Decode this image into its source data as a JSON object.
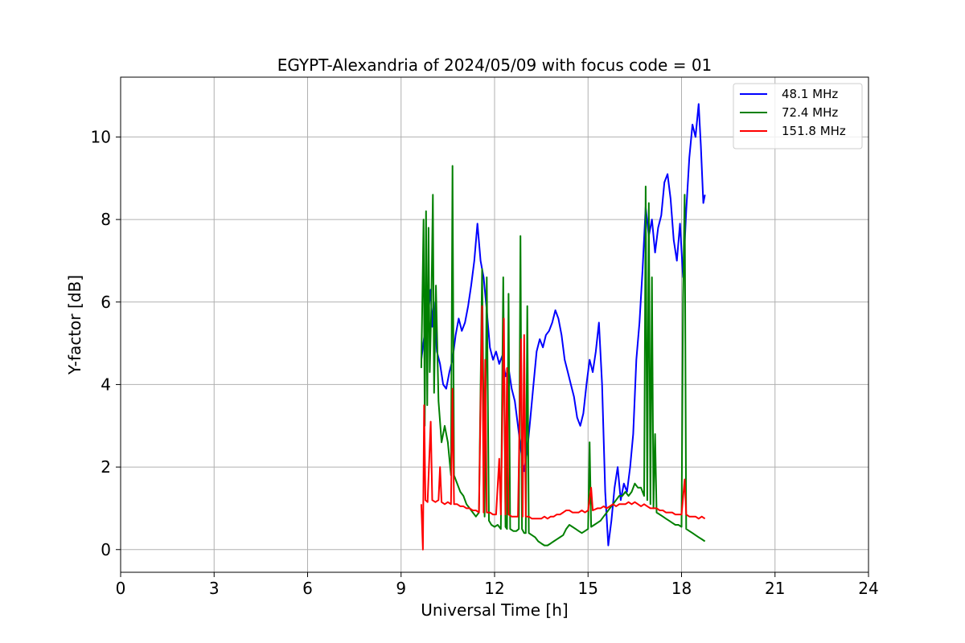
{
  "chart_data": {
    "type": "line",
    "title": "EGYPT-Alexandria of 2024/05/09 with focus code = 01",
    "xlabel": "Universal Time [h]",
    "ylabel": "Y-factor [dB]",
    "xlim": [
      0,
      24
    ],
    "ylim": [
      -0.55,
      11.45
    ],
    "xticks": [
      0,
      3,
      6,
      9,
      12,
      15,
      18,
      21,
      24
    ],
    "yticks": [
      0,
      2,
      4,
      6,
      8,
      10
    ],
    "grid": true,
    "legend_position": "top-right",
    "series": [
      {
        "name": "48.1 MHz",
        "color": "#0000ff",
        "points": [
          [
            9.65,
            4.6
          ],
          [
            9.75,
            5.2
          ],
          [
            9.85,
            5.6
          ],
          [
            9.95,
            6.3
          ],
          [
            10.0,
            5.4
          ],
          [
            10.05,
            6.0
          ],
          [
            10.15,
            4.8
          ],
          [
            10.25,
            4.5
          ],
          [
            10.35,
            4.0
          ],
          [
            10.45,
            3.9
          ],
          [
            10.55,
            4.3
          ],
          [
            10.65,
            4.6
          ],
          [
            10.75,
            5.2
          ],
          [
            10.85,
            5.6
          ],
          [
            10.95,
            5.3
          ],
          [
            11.05,
            5.5
          ],
          [
            11.15,
            5.9
          ],
          [
            11.25,
            6.4
          ],
          [
            11.35,
            7.0
          ],
          [
            11.45,
            7.9
          ],
          [
            11.55,
            7.0
          ],
          [
            11.65,
            6.6
          ],
          [
            11.75,
            5.8
          ],
          [
            11.85,
            4.9
          ],
          [
            11.95,
            4.6
          ],
          [
            12.05,
            4.8
          ],
          [
            12.15,
            4.5
          ],
          [
            12.25,
            4.7
          ],
          [
            12.35,
            4.2
          ],
          [
            12.45,
            4.4
          ],
          [
            12.55,
            3.9
          ],
          [
            12.65,
            3.6
          ],
          [
            12.75,
            3.0
          ],
          [
            12.85,
            2.4
          ],
          [
            12.95,
            1.9
          ],
          [
            13.05,
            2.4
          ],
          [
            13.15,
            3.2
          ],
          [
            13.25,
            4.0
          ],
          [
            13.35,
            4.8
          ],
          [
            13.45,
            5.1
          ],
          [
            13.55,
            4.9
          ],
          [
            13.65,
            5.2
          ],
          [
            13.75,
            5.3
          ],
          [
            13.85,
            5.5
          ],
          [
            13.95,
            5.8
          ],
          [
            14.05,
            5.6
          ],
          [
            14.15,
            5.2
          ],
          [
            14.25,
            4.6
          ],
          [
            14.35,
            4.3
          ],
          [
            14.45,
            4.0
          ],
          [
            14.55,
            3.7
          ],
          [
            14.65,
            3.2
          ],
          [
            14.75,
            3.0
          ],
          [
            14.85,
            3.3
          ],
          [
            14.95,
            4.0
          ],
          [
            15.05,
            4.6
          ],
          [
            15.15,
            4.3
          ],
          [
            15.25,
            4.8
          ],
          [
            15.35,
            5.5
          ],
          [
            15.45,
            4.0
          ],
          [
            15.55,
            1.4
          ],
          [
            15.65,
            0.1
          ],
          [
            15.75,
            0.7
          ],
          [
            15.85,
            1.5
          ],
          [
            15.95,
            2.0
          ],
          [
            16.05,
            1.2
          ],
          [
            16.15,
            1.6
          ],
          [
            16.25,
            1.4
          ],
          [
            16.35,
            2.0
          ],
          [
            16.45,
            2.8
          ],
          [
            16.55,
            4.6
          ],
          [
            16.65,
            5.5
          ],
          [
            16.75,
            6.8
          ],
          [
            16.85,
            8.3
          ],
          [
            16.95,
            7.6
          ],
          [
            17.05,
            8.0
          ],
          [
            17.15,
            7.2
          ],
          [
            17.25,
            7.8
          ],
          [
            17.35,
            8.1
          ],
          [
            17.45,
            8.9
          ],
          [
            17.55,
            9.1
          ],
          [
            17.65,
            8.5
          ],
          [
            17.75,
            7.5
          ],
          [
            17.85,
            7.0
          ],
          [
            17.95,
            7.9
          ],
          [
            18.05,
            6.6
          ],
          [
            18.15,
            8.2
          ],
          [
            18.25,
            9.5
          ],
          [
            18.35,
            10.3
          ],
          [
            18.45,
            10.0
          ],
          [
            18.55,
            10.8
          ],
          [
            18.62,
            9.8
          ],
          [
            18.7,
            8.4
          ],
          [
            18.75,
            8.6
          ]
        ]
      },
      {
        "name": "72.4 MHz",
        "color": "#008000",
        "points": [
          [
            9.65,
            4.4
          ],
          [
            9.72,
            8.0
          ],
          [
            9.76,
            3.0
          ],
          [
            9.8,
            8.2
          ],
          [
            9.84,
            3.5
          ],
          [
            9.88,
            7.8
          ],
          [
            9.92,
            4.3
          ],
          [
            9.97,
            5.8
          ],
          [
            10.02,
            8.6
          ],
          [
            10.06,
            3.8
          ],
          [
            10.12,
            6.4
          ],
          [
            10.2,
            3.6
          ],
          [
            10.3,
            2.6
          ],
          [
            10.4,
            3.0
          ],
          [
            10.5,
            2.6
          ],
          [
            10.6,
            1.8
          ],
          [
            10.65,
            9.3
          ],
          [
            10.7,
            1.8
          ],
          [
            10.8,
            1.6
          ],
          [
            10.9,
            1.4
          ],
          [
            11.0,
            1.3
          ],
          [
            11.1,
            1.1
          ],
          [
            11.2,
            1.0
          ],
          [
            11.3,
            0.9
          ],
          [
            11.4,
            0.8
          ],
          [
            11.5,
            0.9
          ],
          [
            11.6,
            6.8
          ],
          [
            11.68,
            0.8
          ],
          [
            11.75,
            6.6
          ],
          [
            11.82,
            0.7
          ],
          [
            11.9,
            0.6
          ],
          [
            12.0,
            0.55
          ],
          [
            12.1,
            0.6
          ],
          [
            12.2,
            0.5
          ],
          [
            12.28,
            6.6
          ],
          [
            12.35,
            0.55
          ],
          [
            12.4,
            0.5
          ],
          [
            12.45,
            6.2
          ],
          [
            12.5,
            0.5
          ],
          [
            12.6,
            0.45
          ],
          [
            12.7,
            0.45
          ],
          [
            12.78,
            0.5
          ],
          [
            12.83,
            7.6
          ],
          [
            12.88,
            0.5
          ],
          [
            12.95,
            0.4
          ],
          [
            13.0,
            0.4
          ],
          [
            13.05,
            5.9
          ],
          [
            13.1,
            0.4
          ],
          [
            13.2,
            0.35
          ],
          [
            13.3,
            0.3
          ],
          [
            13.4,
            0.2
          ],
          [
            13.5,
            0.15
          ],
          [
            13.6,
            0.1
          ],
          [
            13.7,
            0.1
          ],
          [
            13.8,
            0.15
          ],
          [
            13.9,
            0.2
          ],
          [
            14.0,
            0.25
          ],
          [
            14.1,
            0.3
          ],
          [
            14.2,
            0.35
          ],
          [
            14.3,
            0.5
          ],
          [
            14.4,
            0.6
          ],
          [
            14.5,
            0.55
          ],
          [
            14.6,
            0.5
          ],
          [
            14.7,
            0.45
          ],
          [
            14.8,
            0.4
          ],
          [
            14.9,
            0.45
          ],
          [
            15.0,
            0.5
          ],
          [
            15.05,
            2.6
          ],
          [
            15.1,
            0.55
          ],
          [
            15.2,
            0.6
          ],
          [
            15.3,
            0.65
          ],
          [
            15.4,
            0.7
          ],
          [
            15.5,
            0.8
          ],
          [
            15.6,
            0.9
          ],
          [
            15.7,
            1.0
          ],
          [
            15.8,
            1.1
          ],
          [
            15.9,
            1.2
          ],
          [
            16.0,
            1.3
          ],
          [
            16.1,
            1.3
          ],
          [
            16.2,
            1.4
          ],
          [
            16.3,
            1.3
          ],
          [
            16.4,
            1.4
          ],
          [
            16.5,
            1.6
          ],
          [
            16.6,
            1.5
          ],
          [
            16.7,
            1.5
          ],
          [
            16.8,
            1.3
          ],
          [
            16.85,
            8.8
          ],
          [
            16.9,
            1.2
          ],
          [
            16.95,
            8.4
          ],
          [
            17.0,
            1.1
          ],
          [
            17.05,
            6.6
          ],
          [
            17.1,
            1.0
          ],
          [
            17.15,
            2.8
          ],
          [
            17.2,
            0.9
          ],
          [
            17.3,
            0.85
          ],
          [
            17.4,
            0.8
          ],
          [
            17.5,
            0.75
          ],
          [
            17.6,
            0.7
          ],
          [
            17.7,
            0.65
          ],
          [
            17.8,
            0.6
          ],
          [
            17.9,
            0.6
          ],
          [
            18.0,
            0.55
          ],
          [
            18.05,
            6.1
          ],
          [
            18.1,
            8.6
          ],
          [
            18.15,
            0.5
          ],
          [
            18.25,
            0.45
          ],
          [
            18.35,
            0.4
          ],
          [
            18.45,
            0.35
          ],
          [
            18.55,
            0.3
          ],
          [
            18.65,
            0.25
          ],
          [
            18.75,
            0.2
          ]
        ]
      },
      {
        "name": "151.8 MHz",
        "color": "#ff0000",
        "points": [
          [
            9.65,
            1.1
          ],
          [
            9.7,
            0.0
          ],
          [
            9.74,
            3.5
          ],
          [
            9.78,
            1.2
          ],
          [
            9.85,
            1.15
          ],
          [
            9.95,
            3.1
          ],
          [
            10.0,
            1.2
          ],
          [
            10.1,
            1.15
          ],
          [
            10.2,
            1.2
          ],
          [
            10.25,
            2.0
          ],
          [
            10.3,
            1.15
          ],
          [
            10.4,
            1.1
          ],
          [
            10.5,
            1.15
          ],
          [
            10.6,
            1.1
          ],
          [
            10.65,
            3.9
          ],
          [
            10.7,
            1.1
          ],
          [
            10.8,
            1.1
          ],
          [
            10.9,
            1.05
          ],
          [
            11.0,
            1.05
          ],
          [
            11.1,
            1.0
          ],
          [
            11.2,
            1.0
          ],
          [
            11.3,
            0.95
          ],
          [
            11.4,
            0.95
          ],
          [
            11.5,
            0.9
          ],
          [
            11.55,
            3.5
          ],
          [
            11.6,
            5.9
          ],
          [
            11.65,
            0.9
          ],
          [
            11.7,
            4.6
          ],
          [
            11.75,
            0.9
          ],
          [
            11.85,
            0.9
          ],
          [
            11.95,
            0.85
          ],
          [
            12.05,
            0.85
          ],
          [
            12.15,
            2.2
          ],
          [
            12.2,
            0.85
          ],
          [
            12.3,
            5.6
          ],
          [
            12.35,
            0.85
          ],
          [
            12.4,
            4.4
          ],
          [
            12.45,
            0.85
          ],
          [
            12.55,
            0.8
          ],
          [
            12.65,
            0.8
          ],
          [
            12.75,
            0.8
          ],
          [
            12.85,
            5.1
          ],
          [
            12.9,
            0.8
          ],
          [
            12.95,
            5.2
          ],
          [
            13.0,
            0.8
          ],
          [
            13.1,
            0.8
          ],
          [
            13.2,
            0.75
          ],
          [
            13.3,
            0.75
          ],
          [
            13.4,
            0.75
          ],
          [
            13.5,
            0.75
          ],
          [
            13.6,
            0.8
          ],
          [
            13.7,
            0.75
          ],
          [
            13.8,
            0.8
          ],
          [
            13.9,
            0.8
          ],
          [
            14.0,
            0.85
          ],
          [
            14.1,
            0.85
          ],
          [
            14.2,
            0.9
          ],
          [
            14.3,
            0.95
          ],
          [
            14.4,
            0.95
          ],
          [
            14.5,
            0.9
          ],
          [
            14.6,
            0.9
          ],
          [
            14.7,
            0.9
          ],
          [
            14.8,
            0.95
          ],
          [
            14.9,
            0.9
          ],
          [
            15.0,
            0.95
          ],
          [
            15.1,
            1.5
          ],
          [
            15.15,
            0.95
          ],
          [
            15.3,
            1.0
          ],
          [
            15.4,
            1.0
          ],
          [
            15.5,
            1.05
          ],
          [
            15.6,
            1.0
          ],
          [
            15.7,
            1.05
          ],
          [
            15.8,
            1.1
          ],
          [
            15.9,
            1.05
          ],
          [
            16.0,
            1.1
          ],
          [
            16.1,
            1.1
          ],
          [
            16.2,
            1.1
          ],
          [
            16.3,
            1.15
          ],
          [
            16.4,
            1.1
          ],
          [
            16.5,
            1.15
          ],
          [
            16.6,
            1.1
          ],
          [
            16.7,
            1.05
          ],
          [
            16.8,
            1.1
          ],
          [
            16.9,
            1.05
          ],
          [
            17.0,
            1.0
          ],
          [
            17.1,
            1.0
          ],
          [
            17.2,
            1.0
          ],
          [
            17.3,
            0.95
          ],
          [
            17.4,
            0.95
          ],
          [
            17.5,
            0.9
          ],
          [
            17.6,
            0.9
          ],
          [
            17.7,
            0.9
          ],
          [
            17.8,
            0.85
          ],
          [
            17.9,
            0.85
          ],
          [
            18.0,
            0.85
          ],
          [
            18.1,
            1.7
          ],
          [
            18.15,
            0.85
          ],
          [
            18.25,
            0.8
          ],
          [
            18.35,
            0.8
          ],
          [
            18.45,
            0.8
          ],
          [
            18.55,
            0.75
          ],
          [
            18.65,
            0.8
          ],
          [
            18.75,
            0.75
          ]
        ]
      }
    ]
  }
}
